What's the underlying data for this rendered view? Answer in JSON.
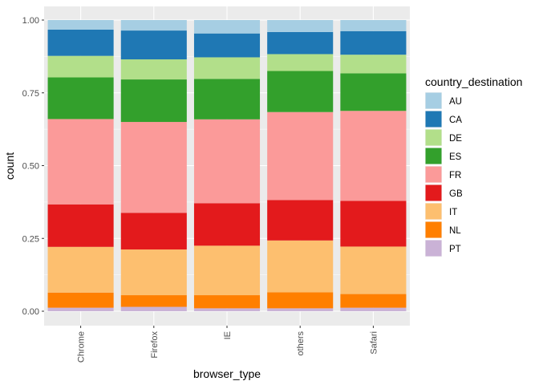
{
  "chart_data": {
    "type": "bar",
    "stacked": true,
    "categories": [
      "Chrome",
      "Firefox",
      "IE",
      "others",
      "Safari"
    ],
    "xlabel": "browser_type",
    "ylabel": "count",
    "ylim": [
      0,
      1
    ],
    "yticks": [
      "0.00",
      "0.25",
      "0.50",
      "0.75",
      "1.00"
    ],
    "grid": true,
    "legend_position": "right",
    "legend_title": "country_destination",
    "series": [
      {
        "name": "PT",
        "color": "#CAB2D6",
        "values": [
          0.012,
          0.015,
          0.01,
          0.01,
          0.012
        ]
      },
      {
        "name": "NL",
        "color": "#FF7F00",
        "values": [
          0.052,
          0.04,
          0.045,
          0.055,
          0.047
        ]
      },
      {
        "name": "IT",
        "color": "#FDBF6F",
        "values": [
          0.157,
          0.157,
          0.17,
          0.178,
          0.163
        ]
      },
      {
        "name": "GB",
        "color": "#E31A1C",
        "values": [
          0.146,
          0.126,
          0.146,
          0.139,
          0.157
        ]
      },
      {
        "name": "FR",
        "color": "#FB9A99",
        "values": [
          0.293,
          0.312,
          0.288,
          0.302,
          0.309
        ]
      },
      {
        "name": "ES",
        "color": "#33A02C",
        "values": [
          0.143,
          0.146,
          0.139,
          0.141,
          0.129
        ]
      },
      {
        "name": "DE",
        "color": "#B2DF8A",
        "values": [
          0.074,
          0.069,
          0.074,
          0.058,
          0.064
        ]
      },
      {
        "name": "CA",
        "color": "#1F78B4",
        "values": [
          0.09,
          0.099,
          0.082,
          0.076,
          0.081
        ]
      },
      {
        "name": "AU",
        "color": "#A6CEE3",
        "values": [
          0.033,
          0.036,
          0.046,
          0.041,
          0.038
        ]
      }
    ],
    "legend_order": [
      "AU",
      "CA",
      "DE",
      "ES",
      "FR",
      "GB",
      "IT",
      "NL",
      "PT"
    ]
  }
}
